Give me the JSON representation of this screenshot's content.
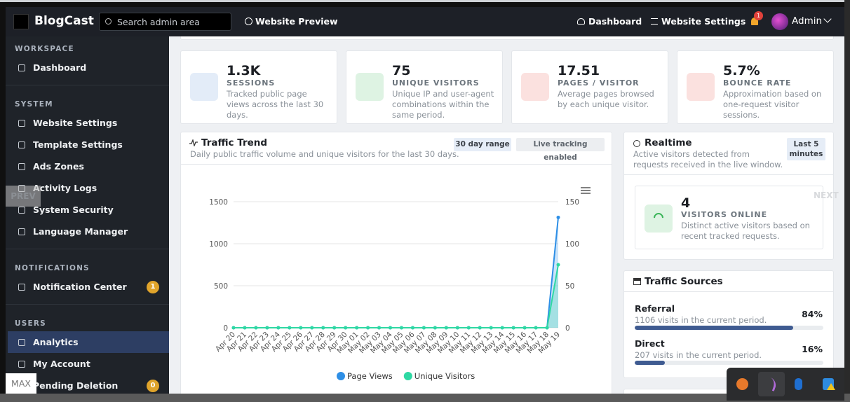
{
  "navbar": {
    "brand": "BlogCast",
    "search_placeholder": "Search admin area",
    "preview_link": "Website Preview",
    "links": [
      "Dashboard",
      "Website Settings"
    ],
    "notification_badge": "1",
    "user": "Admin"
  },
  "sidebar": {
    "sections": [
      {
        "title": "WORKSPACE",
        "items": [
          {
            "label": "Dashboard"
          }
        ]
      },
      {
        "title": "SYSTEM",
        "items": [
          {
            "label": "Website Settings"
          },
          {
            "label": "Template Settings"
          },
          {
            "label": "Ads Zones"
          },
          {
            "label": "Activity Logs"
          },
          {
            "label": "System Security"
          },
          {
            "label": "Language Manager"
          }
        ]
      },
      {
        "title": "NOTIFICATIONS",
        "items": [
          {
            "label": "Notification Center",
            "badge": "1"
          }
        ]
      },
      {
        "title": "USERS",
        "items": [
          {
            "label": "Analytics",
            "active": true
          },
          {
            "label": "My Account"
          },
          {
            "label": "Pending Deletion",
            "badge": "0"
          }
        ]
      }
    ]
  },
  "stats": [
    {
      "value": "1.3K",
      "label": "SESSIONS",
      "description": "Tracked public page views across the last 30 days.",
      "color": "#e3ecf8"
    },
    {
      "value": "75",
      "label": "UNIQUE VISITORS",
      "description": "Unique IP and user-agent combinations within the same period.",
      "color": "#def3e3"
    },
    {
      "value": "17.51",
      "label": "PAGES / VISITOR",
      "description": "Average pages browsed by each unique visitor.",
      "color": "#fbe1df"
    },
    {
      "value": "5.7%",
      "label": "BOUNCE RATE",
      "description": "Approximation based on one-request visitor sessions.",
      "color": "#fbe1df"
    }
  ],
  "traffic_trend": {
    "title": "Traffic Trend",
    "subtitle": "Daily public traffic volume and unique visitors for the last 30 days.",
    "badges": [
      "30 day range",
      "Live tracking enabled"
    ]
  },
  "chart_data": {
    "type": "line",
    "categories": [
      "Apr 20",
      "Apr 21",
      "Apr 22",
      "Apr 23",
      "Apr 24",
      "Apr 25",
      "Apr 26",
      "Apr 27",
      "Apr 28",
      "Apr 29",
      "Apr 30",
      "May 01",
      "May 02",
      "May 03",
      "May 04",
      "May 05",
      "May 06",
      "May 07",
      "May 08",
      "May 09",
      "May 10",
      "May 11",
      "May 12",
      "May 13",
      "May 14",
      "May 15",
      "May 16",
      "May 17",
      "May 18",
      "May 19"
    ],
    "series": [
      {
        "name": "Page Views",
        "color": "#2e8fe6",
        "values": [
          0,
          0,
          0,
          0,
          0,
          0,
          0,
          0,
          0,
          0,
          0,
          0,
          0,
          0,
          0,
          0,
          0,
          0,
          0,
          0,
          0,
          0,
          0,
          0,
          0,
          0,
          0,
          0,
          0,
          1313
        ]
      },
      {
        "name": "Unique Visitors",
        "color": "#2ed8a3",
        "axis": "y2",
        "values": [
          0,
          0,
          0,
          0,
          0,
          0,
          0,
          0,
          0,
          0,
          0,
          0,
          0,
          0,
          0,
          0,
          0,
          0,
          0,
          0,
          0,
          0,
          0,
          0,
          0,
          0,
          0,
          0,
          0,
          75
        ]
      }
    ],
    "ylim": [
      0,
      1500
    ],
    "yticks": [
      0,
      500,
      1000,
      1500
    ],
    "y2lim": [
      0,
      150
    ],
    "y2ticks": [
      0,
      50,
      100,
      150
    ],
    "grid": true,
    "legend": "bottom"
  },
  "realtime": {
    "title": "Realtime",
    "subtitle": "Active visitors detected from requests received in the live window.",
    "badge": "Last 5 minutes",
    "value": "4",
    "label": "VISITORS ONLINE",
    "description": "Distinct active visitors based on recent tracked requests."
  },
  "traffic_sources": {
    "title": "Traffic Sources",
    "sources": [
      {
        "name": "Referral",
        "description": "1106 visits in the current period.",
        "value": 84,
        "value_label": "84%"
      },
      {
        "name": "Direct",
        "description": "207 visits in the current period.",
        "value": 16,
        "value_label": "16%"
      }
    ]
  },
  "overlays": {
    "prev": "PREV",
    "next": "NEXT",
    "max": "MAX"
  }
}
